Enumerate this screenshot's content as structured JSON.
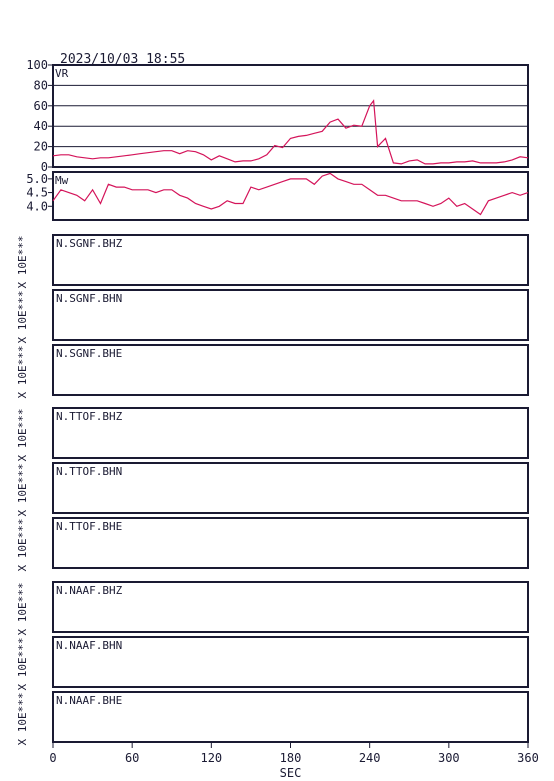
{
  "header": {
    "timestamp": "2023/10/03 18:55"
  },
  "colors": {
    "frame": "#1a1a33",
    "trace": "#d4145a",
    "text": "#1a1a33"
  },
  "chart_data": [
    {
      "type": "line",
      "label": "VR",
      "ylim": [
        0,
        100
      ],
      "yticks": [
        "0",
        "20",
        "40",
        "60",
        "80",
        "100"
      ],
      "grid": true,
      "x": [
        0,
        6,
        12,
        18,
        24,
        30,
        36,
        42,
        48,
        54,
        60,
        66,
        72,
        78,
        84,
        90,
        96,
        102,
        108,
        114,
        120,
        126,
        132,
        138,
        144,
        150,
        156,
        162,
        168,
        174,
        180,
        186,
        192,
        198,
        204,
        210,
        216,
        222,
        228,
        234,
        240,
        243,
        246,
        252,
        258,
        264,
        270,
        276,
        282,
        288,
        294,
        300,
        306,
        312,
        318,
        324,
        330,
        336,
        342,
        348,
        354,
        360
      ],
      "y": [
        11,
        12,
        12,
        10,
        9,
        8,
        9,
        9,
        10,
        11,
        12,
        13,
        14,
        15,
        16,
        16,
        13,
        16,
        15,
        12,
        7,
        11,
        8,
        5,
        6,
        6,
        8,
        12,
        21,
        19,
        28,
        30,
        31,
        33,
        35,
        44,
        47,
        38,
        41,
        40,
        60,
        65,
        20,
        28,
        4,
        3,
        6,
        7,
        3,
        3,
        4,
        4,
        5,
        5,
        6,
        4,
        4,
        4,
        5,
        7,
        10,
        9
      ]
    },
    {
      "type": "line",
      "label": "Mw",
      "ylim": [
        3.5,
        5.25
      ],
      "yticks": [
        "4.0",
        "4.5",
        "5.0"
      ],
      "grid": false,
      "x": [
        0,
        6,
        12,
        18,
        24,
        30,
        36,
        42,
        48,
        54,
        60,
        66,
        72,
        78,
        84,
        90,
        96,
        102,
        108,
        114,
        120,
        126,
        132,
        138,
        144,
        150,
        156,
        162,
        168,
        174,
        180,
        186,
        192,
        198,
        204,
        210,
        216,
        222,
        228,
        234,
        240,
        246,
        252,
        258,
        264,
        270,
        276,
        282,
        288,
        294,
        300,
        306,
        312,
        318,
        324,
        330,
        336,
        342,
        348,
        354,
        360
      ],
      "y": [
        4.2,
        4.6,
        4.5,
        4.4,
        4.2,
        4.6,
        4.1,
        4.8,
        4.7,
        4.7,
        4.6,
        4.6,
        4.6,
        4.5,
        4.6,
        4.6,
        4.4,
        4.3,
        4.1,
        4.0,
        3.9,
        4.0,
        4.2,
        4.1,
        4.1,
        4.7,
        4.6,
        4.7,
        4.8,
        4.9,
        5.0,
        5.0,
        5.0,
        4.8,
        5.1,
        5.2,
        5.0,
        4.9,
        4.8,
        4.8,
        4.6,
        4.4,
        4.4,
        4.3,
        4.2,
        4.2,
        4.2,
        4.1,
        4.0,
        4.1,
        4.3,
        4.0,
        4.1,
        3.9,
        3.7,
        4.2,
        4.3,
        4.4,
        4.5,
        4.4,
        4.5
      ]
    }
  ],
  "traces": {
    "axis_label": "X 10E***",
    "groups": [
      [
        "N.SGNF.BHZ",
        "N.SGNF.BHN",
        "N.SGNF.BHE"
      ],
      [
        "N.TTOF.BHZ",
        "N.TTOF.BHN",
        "N.TTOF.BHE"
      ],
      [
        "N.NAAF.BHZ",
        "N.NAAF.BHN",
        "N.NAAF.BHE"
      ]
    ]
  },
  "xaxis": {
    "ticks": [
      "0",
      "60",
      "120",
      "180",
      "240",
      "300",
      "360"
    ],
    "label": "SEC",
    "xlim": [
      0,
      360
    ]
  }
}
